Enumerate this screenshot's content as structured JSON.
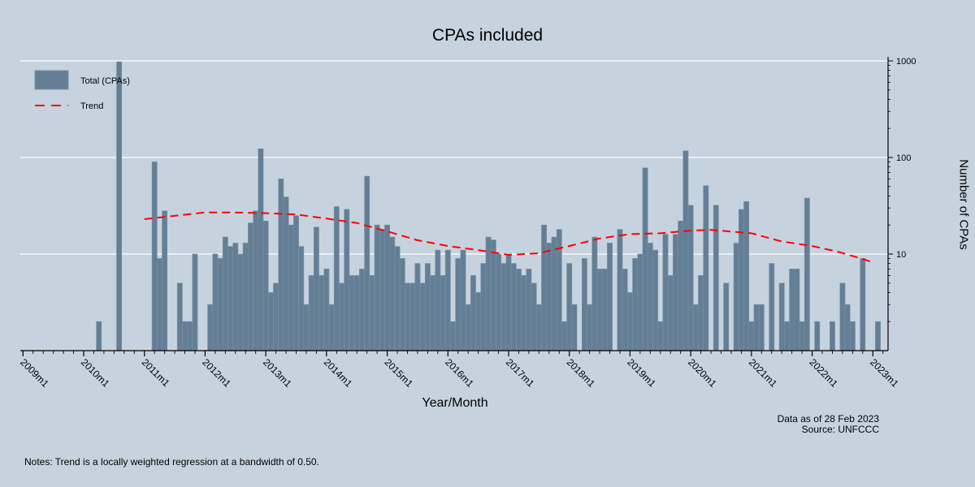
{
  "chart_data": {
    "type": "bar",
    "title": "CPAs included",
    "xlabel": "Year/Month",
    "ylabel": "Number of CPAs",
    "yscale": "log",
    "ylim": [
      1,
      1000
    ],
    "y_ticks": [
      "1000",
      "100",
      "10"
    ],
    "y_tick_values": [
      1000,
      100,
      10
    ],
    "x_range": [
      "2009m1",
      "2023m4"
    ],
    "x_ticks": [
      "2009m1",
      "2010m1",
      "2011m1",
      "2012m1",
      "2013m1",
      "2014m1",
      "2015m1",
      "2016m1",
      "2017m1",
      "2018m1",
      "2019m1",
      "2020m1",
      "2021m1",
      "2022m1",
      "2023m1"
    ],
    "grid": true,
    "legend_position": "top-left",
    "colors": {
      "bar": "#647f95",
      "trend": "#ff0000",
      "background": "#c6d3df",
      "grid": "#ffffff"
    },
    "series": [
      {
        "name": "Total (CPAs)",
        "type": "bar",
        "x": [
          "2010m4",
          "2010m8",
          "2011m3",
          "2011m4",
          "2011m5",
          "2011m8",
          "2011m9",
          "2011m10",
          "2011m11",
          "2012m2",
          "2012m3",
          "2012m4",
          "2012m5",
          "2012m6",
          "2012m7",
          "2012m8",
          "2012m9",
          "2012m10",
          "2012m11",
          "2012m12",
          "2013m1",
          "2013m2",
          "2013m3",
          "2013m4",
          "2013m5",
          "2013m6",
          "2013m7",
          "2013m8",
          "2013m9",
          "2013m10",
          "2013m11",
          "2013m12",
          "2014m1",
          "2014m2",
          "2014m3",
          "2014m4",
          "2014m5",
          "2014m6",
          "2014m7",
          "2014m8",
          "2014m9",
          "2014m10",
          "2014m11",
          "2014m12",
          "2015m1",
          "2015m2",
          "2015m3",
          "2015m4",
          "2015m5",
          "2015m6",
          "2015m7",
          "2015m8",
          "2015m9",
          "2015m10",
          "2015m11",
          "2015m12",
          "2016m1",
          "2016m2",
          "2016m3",
          "2016m4",
          "2016m5",
          "2016m6",
          "2016m7",
          "2016m8",
          "2016m9",
          "2016m10",
          "2016m11",
          "2016m12",
          "2017m1",
          "2017m2",
          "2017m3",
          "2017m4",
          "2017m5",
          "2017m6",
          "2017m7",
          "2017m8",
          "2017m9",
          "2017m10",
          "2017m11",
          "2017m12",
          "2018m1",
          "2018m2",
          "2018m4",
          "2018m5",
          "2018m6",
          "2018m7",
          "2018m8",
          "2018m9",
          "2018m11",
          "2018m12",
          "2019m1",
          "2019m2",
          "2019m3",
          "2019m4",
          "2019m5",
          "2019m6",
          "2019m7",
          "2019m8",
          "2019m9",
          "2019m10",
          "2019m11",
          "2019m12",
          "2020m1",
          "2020m2",
          "2020m3",
          "2020m4",
          "2020m6",
          "2020m8",
          "2020m10",
          "2020m11",
          "2020m12",
          "2021m1",
          "2021m2",
          "2021m3",
          "2021m5",
          "2021m7",
          "2021m8",
          "2021m9",
          "2021m10",
          "2021m11",
          "2021m12",
          "2022m2",
          "2022m5",
          "2022m7",
          "2022m8",
          "2022m9",
          "2022m11",
          "2023m2"
        ],
        "values": [
          2,
          980,
          90,
          9,
          28,
          5,
          2,
          2,
          10,
          3,
          10,
          9,
          15,
          12,
          13,
          10,
          13,
          21,
          28,
          123,
          22,
          4,
          5,
          60,
          39,
          20,
          25,
          12,
          3,
          6,
          19,
          6,
          7,
          3,
          31,
          5,
          29,
          6,
          6,
          7,
          64,
          6,
          20,
          18,
          20,
          15,
          12,
          9,
          5,
          5,
          8,
          5,
          8,
          6,
          11,
          6,
          11,
          2,
          9,
          11,
          3,
          6,
          4,
          8,
          15,
          14,
          10,
          8,
          10,
          8,
          7,
          6,
          7,
          5,
          3,
          20,
          13,
          15,
          18,
          2,
          8,
          3,
          9,
          3,
          15,
          7,
          7,
          13,
          18,
          7,
          4,
          9,
          10,
          78,
          13,
          11,
          2,
          16,
          6,
          16,
          22,
          117,
          32,
          3,
          6,
          51,
          32,
          5,
          13,
          29,
          35,
          2,
          3,
          3,
          8,
          5,
          2,
          7,
          7,
          2,
          38,
          2,
          2,
          5,
          3,
          2,
          9,
          2
        ]
      },
      {
        "name": "Trend",
        "type": "line",
        "style": "dashed",
        "x": [
          "2011m1",
          "2012m1",
          "2012m6",
          "2013m1",
          "2013m7",
          "2014m1",
          "2014m7",
          "2015m1",
          "2015m7",
          "2016m1",
          "2016m7",
          "2017m1",
          "2017m7",
          "2018m1",
          "2018m7",
          "2019m1",
          "2019m7",
          "2020m1",
          "2020m5",
          "2021m1",
          "2021m7",
          "2022m1",
          "2022m6",
          "2022m11",
          "2023m1"
        ],
        "values": [
          23,
          27,
          27,
          26.5,
          25.7,
          23.3,
          21,
          17.2,
          13.9,
          12.1,
          11,
          9.8,
          10.2,
          12.1,
          14.5,
          16.1,
          16.4,
          17.5,
          17.8,
          16.4,
          13.5,
          12.1,
          10.6,
          8.9,
          8.2
        ]
      }
    ],
    "notes": "Notes: Trend is a locally weighted regression at a bandwidth of 0.50.",
    "data_as_of": "Data as of 28 Feb 2023",
    "source": "Source: UNFCCC"
  }
}
